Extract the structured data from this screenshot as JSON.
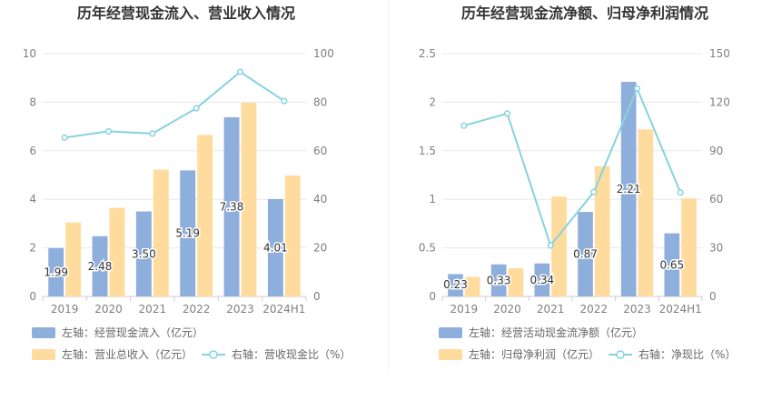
{
  "chart_data": [
    {
      "type": "bar",
      "title": "历年经营现金流入、营业收入情况",
      "categories": [
        "2019",
        "2020",
        "2021",
        "2022",
        "2023",
        "2024H1"
      ],
      "left_axis": {
        "min": 0,
        "max": 10,
        "ticks": [
          "0",
          "2",
          "4",
          "6",
          "8",
          "10"
        ]
      },
      "right_axis": {
        "min": 0,
        "max": 100,
        "ticks": [
          "0",
          "20",
          "40",
          "60",
          "80",
          "100"
        ]
      },
      "series": [
        {
          "name": "左轴：经营现金流入（亿元）",
          "axis": "left",
          "kind": "bar",
          "color": "#8eaedc",
          "values": [
            1.99,
            2.48,
            3.5,
            5.19,
            7.38,
            4.01
          ],
          "labels": [
            "1.99",
            "2.48",
            "3.50",
            "5.19",
            "7.38",
            "4.01"
          ]
        },
        {
          "name": "左轴：营业总收入（亿元）",
          "axis": "left",
          "kind": "bar",
          "color": "#ffdc9e",
          "values": [
            3.05,
            3.65,
            5.22,
            6.65,
            7.98,
            4.98
          ]
        },
        {
          "name": "右轴：营收现金比（%）",
          "axis": "right",
          "kind": "line",
          "color": "#86d3dd",
          "values": [
            65.4,
            68.0,
            67.1,
            77.5,
            92.5,
            80.5
          ]
        }
      ]
    },
    {
      "type": "bar",
      "title": "历年经营现金流净额、归母净利润情况",
      "categories": [
        "2019",
        "2020",
        "2021",
        "2022",
        "2023",
        "2024H1"
      ],
      "left_axis": {
        "min": 0,
        "max": 2.5,
        "ticks": [
          "0",
          "0.5",
          "1",
          "1.5",
          "2",
          "2.5"
        ]
      },
      "right_axis": {
        "min": 0,
        "max": 150,
        "ticks": [
          "0",
          "30",
          "60",
          "90",
          "120",
          "150"
        ]
      },
      "series": [
        {
          "name": "左轴：经营活动现金流净额（亿元）",
          "axis": "left",
          "kind": "bar",
          "color": "#8eaedc",
          "values": [
            0.23,
            0.33,
            0.34,
            0.87,
            2.21,
            0.65
          ],
          "labels": [
            "0.23",
            "0.33",
            "0.34",
            "0.87",
            "2.21",
            "0.65"
          ]
        },
        {
          "name": "左轴：归母净利润（亿元）",
          "axis": "left",
          "kind": "bar",
          "color": "#ffdc9e",
          "values": [
            0.2,
            0.29,
            1.03,
            1.34,
            1.72,
            1.01
          ]
        },
        {
          "name": "右轴：净现比（%）",
          "axis": "right",
          "kind": "line",
          "color": "#86d3dd",
          "values": [
            105.5,
            113.0,
            31.5,
            64.5,
            128.5,
            64.2
          ]
        }
      ]
    }
  ]
}
